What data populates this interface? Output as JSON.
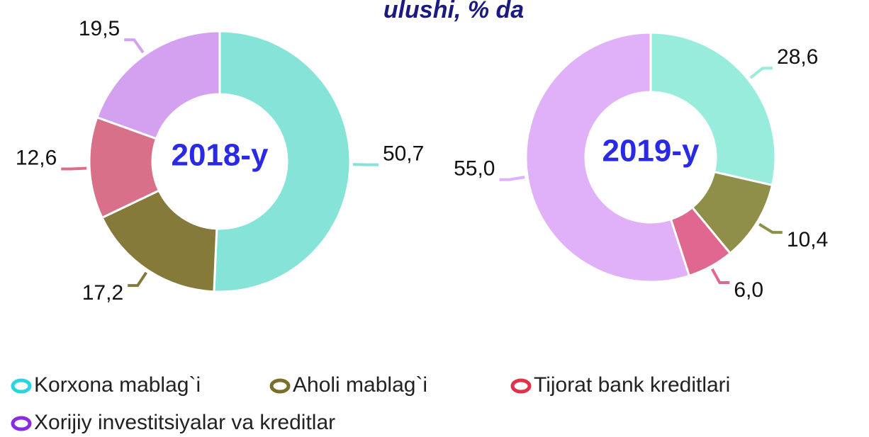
{
  "title": "ulushi, % da",
  "legend": {
    "categories": [
      "Korxona mablag`i",
      "Aholi mablag`i",
      "Tijorat bank kreditlari",
      "Xorijiy investitsiyalar va kreditlar"
    ],
    "colors": [
      "#2ad4e0",
      "#7a6f2a",
      "#e0304a",
      "#8a2be2"
    ]
  },
  "chart_data": [
    {
      "type": "pie",
      "label": "2018-y",
      "values": [
        50.7,
        17.2,
        12.6,
        19.5
      ],
      "value_labels": [
        "50,7",
        "17,2",
        "12,6",
        "19,5"
      ],
      "colors": [
        "#86e3d8",
        "#857a3a",
        "#d9708a",
        "#d4a0f0"
      ]
    },
    {
      "type": "pie",
      "label": "2019-y",
      "values": [
        28.6,
        10.4,
        6.0,
        55.0
      ],
      "value_labels": [
        "28,6",
        "10,4",
        "6,0",
        "55,0"
      ],
      "colors": [
        "#98ecdc",
        "#8f8f4a",
        "#e06890",
        "#e0b0f8"
      ]
    }
  ]
}
